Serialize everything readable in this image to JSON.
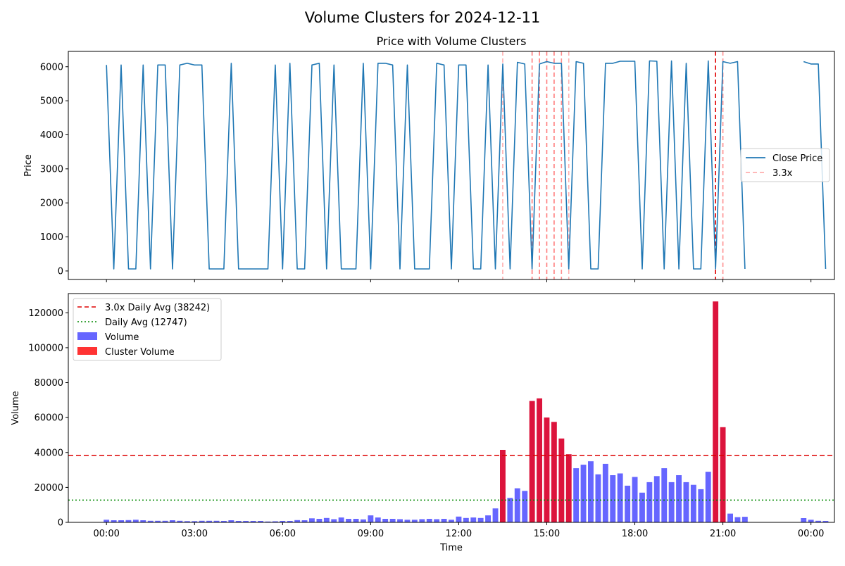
{
  "figure": {
    "suptitle": "Volume Clusters for 2024-12-11"
  },
  "chart_data": [
    {
      "type": "line",
      "title": "Price with Volume Clusters",
      "xlabel": "",
      "ylabel": "Price",
      "ylim": [
        -250,
        6450
      ],
      "yticks": [
        0,
        1000,
        2000,
        3000,
        4000,
        5000,
        6000
      ],
      "xlim": [
        -1.3,
        24.8
      ],
      "shared_x_with_next": true,
      "legend": {
        "placement": "center-right",
        "entries": [
          "Close Price",
          "3.3x"
        ]
      },
      "series": [
        {
          "name": "Close Price",
          "color": "#1f77b4",
          "segments": [
            {
              "x": [
                0.0,
                0.25,
                0.5,
                0.75,
                1.0,
                1.25,
                1.5,
                1.75,
                2.0,
                2.25,
                2.5,
                2.75,
                3.0,
                3.25,
                3.5,
                3.75,
                4.0,
                4.25,
                4.5,
                4.75,
                5.0,
                5.25,
                5.5,
                5.75,
                6.0,
                6.25,
                6.5,
                6.75,
                7.0,
                7.25,
                7.5,
                7.75,
                8.0,
                8.25,
                8.5,
                8.75,
                9.0,
                9.25,
                9.5,
                9.75,
                10.0,
                10.25,
                10.5,
                10.75,
                11.0,
                11.25,
                11.5,
                11.75,
                12.0,
                12.25,
                12.5,
                12.75,
                13.0,
                13.25,
                13.5,
                13.75,
                14.0,
                14.25,
                14.5,
                14.75,
                15.0,
                15.25,
                15.5,
                15.75,
                16.0,
                16.25,
                16.5,
                16.75,
                17.0,
                17.25,
                17.5,
                17.75,
                18.0,
                18.25,
                18.5,
                18.75,
                19.0,
                19.25,
                19.5,
                19.75,
                20.0,
                20.25,
                20.5,
                20.75,
                21.0,
                21.25,
                21.5,
                21.75
              ],
              "y": [
                6050,
                60,
                6050,
                60,
                60,
                6050,
                60,
                6050,
                6050,
                60,
                6050,
                6100,
                6050,
                6050,
                60,
                60,
                60,
                6100,
                60,
                60,
                60,
                60,
                60,
                6050,
                60,
                6100,
                60,
                60,
                6050,
                6100,
                60,
                6050,
                60,
                60,
                60,
                6100,
                60,
                6100,
                6100,
                6050,
                60,
                6050,
                60,
                60,
                60,
                6100,
                6050,
                60,
                6050,
                6050,
                60,
                60,
                6050,
                60,
                6080,
                60,
                6130,
                6080,
                60,
                6080,
                6150,
                6100,
                6100,
                60,
                6150,
                6100,
                60,
                60,
                6100,
                6100,
                6160,
                6160,
                6160,
                60,
                6170,
                6160,
                60,
                6170,
                60,
                6100,
                60,
                60,
                6170,
                60,
                6150,
                6100,
                6150,
                60
              ]
            },
            {
              "x": [
                23.75,
                24.0,
                24.25,
                24.5
              ],
              "y": [
                6150,
                6080,
                6080,
                60
              ]
            }
          ]
        }
      ],
      "annotations": {
        "vlines": [
          {
            "x": 13.5,
            "color": "#ff6060",
            "style": "dashed",
            "alpha": 0.5
          },
          {
            "x": 14.5,
            "color": "#ff6060",
            "style": "dashed",
            "alpha": 0.85
          },
          {
            "x": 14.75,
            "color": "#ff6060",
            "style": "dashed",
            "alpha": 0.85
          },
          {
            "x": 15.0,
            "color": "#ff6060",
            "style": "dashed",
            "alpha": 0.85
          },
          {
            "x": 15.25,
            "color": "#ff6060",
            "style": "dashed",
            "alpha": 0.85
          },
          {
            "x": 15.5,
            "color": "#ff6060",
            "style": "dashed",
            "alpha": 0.7
          },
          {
            "x": 15.75,
            "color": "#ff6060",
            "style": "dashed",
            "alpha": 0.5
          },
          {
            "x": 20.75,
            "color": "#e00000",
            "style": "dashed",
            "alpha": 1.0
          },
          {
            "x": 21.0,
            "color": "#ff6060",
            "style": "dashed",
            "alpha": 0.7
          }
        ]
      }
    },
    {
      "type": "bar",
      "title": "",
      "xlabel": "Time",
      "ylabel": "Volume",
      "ylim": [
        0,
        131000
      ],
      "yticks": [
        0,
        20000,
        40000,
        60000,
        80000,
        100000,
        120000
      ],
      "xlim": [
        -1.3,
        24.8
      ],
      "xticks": [
        0,
        3,
        6,
        9,
        12,
        15,
        18,
        21,
        24
      ],
      "xticklabels": [
        "00:00",
        "03:00",
        "06:00",
        "09:00",
        "12:00",
        "15:00",
        "18:00",
        "21:00",
        "00:00"
      ],
      "bar_width_hours": 0.19,
      "series": [
        {
          "name": "Volume",
          "color": "#6666ff",
          "x": [
            0.0,
            0.25,
            0.5,
            0.75,
            1.0,
            1.25,
            1.5,
            1.75,
            2.0,
            2.25,
            2.5,
            2.75,
            3.0,
            3.25,
            3.5,
            3.75,
            4.0,
            4.25,
            4.5,
            4.75,
            5.0,
            5.25,
            5.5,
            5.75,
            6.0,
            6.25,
            6.5,
            6.75,
            7.0,
            7.25,
            7.5,
            7.75,
            8.0,
            8.25,
            8.5,
            8.75,
            9.0,
            9.25,
            9.5,
            9.75,
            10.0,
            10.25,
            10.5,
            10.75,
            11.0,
            11.25,
            11.5,
            11.75,
            12.0,
            12.25,
            12.5,
            12.75,
            13.0,
            13.25,
            13.75,
            14.0,
            14.25,
            16.0,
            16.25,
            16.5,
            16.75,
            17.0,
            17.25,
            17.5,
            17.75,
            18.0,
            18.25,
            18.5,
            18.75,
            19.0,
            19.25,
            19.5,
            19.75,
            20.0,
            20.25,
            20.5,
            21.25,
            21.5,
            21.75,
            23.75,
            24.0,
            24.25,
            24.5
          ],
          "values": [
            1500,
            1200,
            1200,
            1300,
            1500,
            1200,
            900,
            900,
            900,
            1200,
            900,
            700,
            700,
            900,
            900,
            900,
            800,
            1200,
            800,
            800,
            800,
            800,
            500,
            600,
            800,
            800,
            1300,
            1200,
            2300,
            2000,
            2500,
            1800,
            2800,
            2000,
            2000,
            1700,
            4000,
            2800,
            2000,
            2000,
            1800,
            1500,
            1500,
            1800,
            2000,
            1800,
            2000,
            1500,
            3300,
            2500,
            2800,
            2500,
            4000,
            8000,
            14000,
            19500,
            18000,
            31000,
            33000,
            35000,
            27500,
            33500,
            27000,
            28000,
            21000,
            26000,
            17000,
            23000,
            26500,
            31000,
            23000,
            27000,
            23000,
            21500,
            19000,
            29000,
            5000,
            3000,
            3200,
            2400,
            1500,
            900,
            800
          ]
        },
        {
          "name": "Cluster Volume",
          "color": "#dc143c",
          "x": [
            13.5,
            14.5,
            14.75,
            15.0,
            15.25,
            15.5,
            15.75,
            20.75,
            21.0
          ],
          "values": [
            41500,
            69500,
            71000,
            60000,
            57500,
            48000,
            39000,
            126500,
            54500
          ]
        }
      ],
      "hlines": [
        {
          "name": "3.0x Daily Avg (38242)",
          "y": 38242,
          "color": "#dd0000",
          "style": "dashed"
        },
        {
          "name": "Daily Avg (12747)",
          "y": 12747,
          "color": "#008800",
          "style": "dotted"
        }
      ],
      "legend": {
        "placement": "top-left",
        "entries": [
          {
            "label": "3.0x Daily Avg (38242)",
            "kind": "dashed-line",
            "color": "#dd0000"
          },
          {
            "label": "Daily Avg (12747)",
            "kind": "dotted-line",
            "color": "#008800"
          },
          {
            "label": "Volume",
            "kind": "patch",
            "color": "#6666ff"
          },
          {
            "label": "Cluster Volume",
            "kind": "patch",
            "color": "#ff3333"
          }
        ]
      }
    }
  ]
}
